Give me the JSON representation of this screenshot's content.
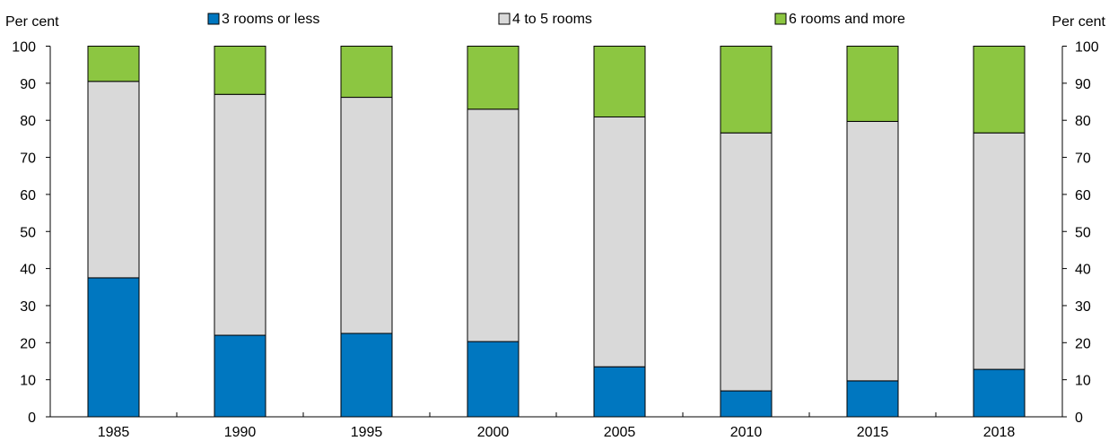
{
  "chart_data": {
    "type": "bar",
    "stacked": true,
    "categories": [
      "1985",
      "1990",
      "1995",
      "2000",
      "2005",
      "2010",
      "2015",
      "2018"
    ],
    "series": [
      {
        "name": "3 rooms or less",
        "color": "#0077c0",
        "values": [
          37.5,
          22,
          22.5,
          20.3,
          13.5,
          7,
          9.7,
          12.8
        ]
      },
      {
        "name": "4 to 5 rooms",
        "color": "#d9d9d9",
        "values": [
          53,
          65,
          63.7,
          62.7,
          67.4,
          69.6,
          70,
          63.8
        ]
      },
      {
        "name": "6 rooms and more",
        "color": "#8cc641",
        "values": [
          9.5,
          13,
          13.8,
          17,
          19.1,
          23.4,
          20.3,
          23.4
        ]
      }
    ],
    "ylabel_left": "Per cent",
    "ylabel_right": "Per cent",
    "ylim": [
      0,
      100
    ],
    "yticks": [
      0,
      10,
      20,
      30,
      40,
      50,
      60,
      70,
      80,
      90,
      100
    ],
    "grid": false,
    "legend_position": "top"
  }
}
